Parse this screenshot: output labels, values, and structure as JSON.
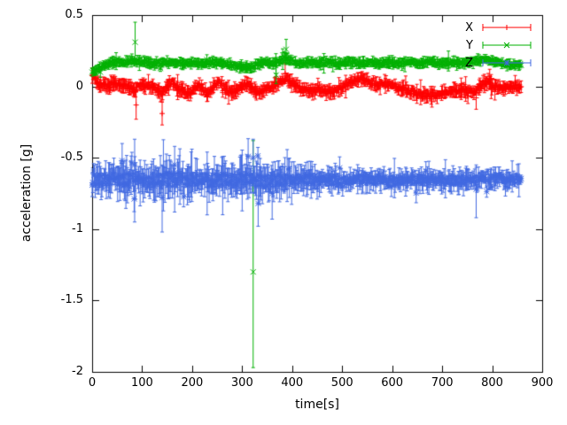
{
  "chart_data": {
    "type": "scatter",
    "style": "points-with-errorbars",
    "title": "",
    "xlabel": "time[s]",
    "ylabel": "acceleration [g]",
    "xlim": [
      0,
      900
    ],
    "ylim": [
      -2,
      0.5
    ],
    "grid": false,
    "legend_position": "top-right-inside",
    "axis_color": "#000000",
    "xticks": [
      {
        "v": 0,
        "label": "0"
      },
      {
        "v": 100,
        "label": "100"
      },
      {
        "v": 200,
        "label": "200"
      },
      {
        "v": 300,
        "label": "300"
      },
      {
        "v": 400,
        "label": "400"
      },
      {
        "v": 500,
        "label": "500"
      },
      {
        "v": 600,
        "label": "600"
      },
      {
        "v": 700,
        "label": "700"
      },
      {
        "v": 800,
        "label": "800"
      },
      {
        "v": 900,
        "label": "900"
      }
    ],
    "yticks": [
      {
        "v": 0.5,
        "label": "0.5"
      },
      {
        "v": 0,
        "label": "0"
      },
      {
        "v": -0.5,
        "label": "-0.5"
      },
      {
        "v": -1,
        "label": "-1"
      },
      {
        "v": -1.5,
        "label": "-1.5"
      },
      {
        "v": -2,
        "label": "-2"
      }
    ],
    "series": [
      {
        "name": "X",
        "color": "#ff0000",
        "marker": "plus",
        "seed": 7,
        "step": 1.5,
        "t_start": 0,
        "t_end": 858,
        "noise": 0.015,
        "err": 0.032,
        "drift": [
          [
            0,
            0.09
          ],
          [
            8,
            0.04
          ],
          [
            18,
            0.01
          ],
          [
            30,
            0.0
          ],
          [
            45,
            0.02
          ],
          [
            60,
            0.01
          ],
          [
            75,
            -0.01
          ],
          [
            85,
            -0.03
          ],
          [
            95,
            0.01
          ],
          [
            110,
            0.01
          ],
          [
            125,
            -0.01
          ],
          [
            138,
            -0.05
          ],
          [
            148,
            -0.01
          ],
          [
            160,
            0.02
          ],
          [
            172,
            -0.01
          ],
          [
            185,
            -0.03
          ],
          [
            196,
            -0.06
          ],
          [
            205,
            -0.02
          ],
          [
            213,
            0.02
          ],
          [
            222,
            -0.02
          ],
          [
            232,
            -0.06
          ],
          [
            242,
            -0.01
          ],
          [
            252,
            0.03
          ],
          [
            262,
            0.0
          ],
          [
            272,
            -0.03
          ],
          [
            283,
            -0.05
          ],
          [
            293,
            -0.01
          ],
          [
            305,
            0.02
          ],
          [
            318,
            -0.01
          ],
          [
            330,
            -0.04
          ],
          [
            342,
            -0.03
          ],
          [
            355,
            -0.01
          ],
          [
            368,
            0.0
          ],
          [
            380,
            0.04
          ],
          [
            390,
            0.06
          ],
          [
            398,
            0.02
          ],
          [
            410,
            0.0
          ],
          [
            425,
            -0.02
          ],
          [
            440,
            -0.03
          ],
          [
            455,
            -0.02
          ],
          [
            470,
            -0.04
          ],
          [
            485,
            -0.03
          ],
          [
            500,
            -0.01
          ],
          [
            512,
            0.02
          ],
          [
            525,
            0.04
          ],
          [
            538,
            0.06
          ],
          [
            550,
            0.04
          ],
          [
            562,
            0.01
          ],
          [
            575,
            0.01
          ],
          [
            590,
            0.02
          ],
          [
            605,
            0.0
          ],
          [
            620,
            -0.02
          ],
          [
            635,
            -0.04
          ],
          [
            650,
            -0.05
          ],
          [
            665,
            -0.06
          ],
          [
            680,
            -0.06
          ],
          [
            695,
            -0.05
          ],
          [
            710,
            -0.04
          ],
          [
            725,
            -0.03
          ],
          [
            740,
            -0.02
          ],
          [
            755,
            -0.04
          ],
          [
            768,
            -0.03
          ],
          [
            780,
            0.02
          ],
          [
            792,
            0.03
          ],
          [
            805,
            -0.01
          ],
          [
            820,
            -0.01
          ],
          [
            835,
            0.0
          ],
          [
            858,
            -0.01
          ]
        ],
        "outliers": [
          {
            "x": 88,
            "y": -0.13,
            "lo": -0.23,
            "hi": -0.04
          },
          {
            "x": 140,
            "y": -0.19,
            "lo": -0.27,
            "hi": -0.11
          },
          {
            "x": 386,
            "y": 0.09,
            "lo": 0.02,
            "hi": 0.16
          },
          {
            "x": 768,
            "y": -0.08,
            "lo": -0.16,
            "hi": 0.0
          },
          {
            "x": 795,
            "y": 0.05,
            "lo": -0.02,
            "hi": 0.12
          }
        ]
      },
      {
        "name": "Y",
        "color": "#00b000",
        "marker": "cross",
        "seed": 11,
        "step": 1.5,
        "t_start": 0,
        "t_end": 858,
        "noise": 0.011,
        "err": 0.024,
        "drift": [
          [
            0,
            0.1
          ],
          [
            12,
            0.12
          ],
          [
            25,
            0.15
          ],
          [
            40,
            0.17
          ],
          [
            60,
            0.17
          ],
          [
            80,
            0.18
          ],
          [
            100,
            0.17
          ],
          [
            120,
            0.16
          ],
          [
            140,
            0.17
          ],
          [
            160,
            0.17
          ],
          [
            180,
            0.16
          ],
          [
            200,
            0.17
          ],
          [
            220,
            0.16
          ],
          [
            240,
            0.17
          ],
          [
            260,
            0.16
          ],
          [
            280,
            0.15
          ],
          [
            298,
            0.14
          ],
          [
            315,
            0.13
          ],
          [
            330,
            0.15
          ],
          [
            345,
            0.17
          ],
          [
            360,
            0.16
          ],
          [
            375,
            0.18
          ],
          [
            388,
            0.2
          ],
          [
            398,
            0.17
          ],
          [
            415,
            0.16
          ],
          [
            435,
            0.17
          ],
          [
            455,
            0.16
          ],
          [
            475,
            0.17
          ],
          [
            495,
            0.16
          ],
          [
            515,
            0.17
          ],
          [
            535,
            0.16
          ],
          [
            555,
            0.17
          ],
          [
            575,
            0.16
          ],
          [
            595,
            0.17
          ],
          [
            615,
            0.16
          ],
          [
            635,
            0.17
          ],
          [
            655,
            0.16
          ],
          [
            675,
            0.17
          ],
          [
            695,
            0.16
          ],
          [
            715,
            0.17
          ],
          [
            735,
            0.16
          ],
          [
            755,
            0.17
          ],
          [
            775,
            0.18
          ],
          [
            790,
            0.19
          ],
          [
            805,
            0.17
          ],
          [
            822,
            0.16
          ],
          [
            840,
            0.15
          ],
          [
            858,
            0.15
          ]
        ],
        "outliers": [
          {
            "x": 86,
            "y": 0.31,
            "lo": 0.18,
            "hi": 0.45
          },
          {
            "x": 322,
            "y": -1.3,
            "lo": -1.97,
            "hi": -0.38
          },
          {
            "x": 368,
            "y": 0.08,
            "lo": 0.02,
            "hi": 0.14
          },
          {
            "x": 388,
            "y": 0.26,
            "lo": 0.18,
            "hi": 0.33
          }
        ]
      },
      {
        "name": "Z",
        "color": "#4169e1",
        "marker": "star",
        "seed": 23,
        "step": 1.5,
        "t_start": 0,
        "t_end": 858,
        "noise": 0.032,
        "err": 0.055,
        "noise_profile": [
          [
            0,
            1.2
          ],
          [
            80,
            1.5
          ],
          [
            140,
            1.6
          ],
          [
            200,
            1.3
          ],
          [
            260,
            1.4
          ],
          [
            320,
            1.5
          ],
          [
            380,
            1.3
          ],
          [
            440,
            1.1
          ],
          [
            500,
            1.0
          ],
          [
            560,
            0.9
          ],
          [
            620,
            0.85
          ],
          [
            680,
            0.8
          ],
          [
            740,
            0.9
          ],
          [
            800,
            0.75
          ],
          [
            858,
            0.7
          ]
        ],
        "drift": [
          [
            0,
            -0.66
          ],
          [
            60,
            -0.65
          ],
          [
            120,
            -0.66
          ],
          [
            180,
            -0.65
          ],
          [
            240,
            -0.66
          ],
          [
            300,
            -0.65
          ],
          [
            360,
            -0.66
          ],
          [
            420,
            -0.65
          ],
          [
            480,
            -0.66
          ],
          [
            540,
            -0.65
          ],
          [
            600,
            -0.66
          ],
          [
            660,
            -0.65
          ],
          [
            720,
            -0.66
          ],
          [
            780,
            -0.65
          ],
          [
            858,
            -0.65
          ]
        ],
        "outliers": [
          {
            "x": 60,
            "y": -0.52,
            "lo": -0.62,
            "hi": -0.4
          },
          {
            "x": 85,
            "y": -0.55,
            "lo": -0.95,
            "hi": -0.37
          },
          {
            "x": 140,
            "y": -0.78,
            "lo": -1.02,
            "hi": -0.55
          },
          {
            "x": 165,
            "y": -0.55,
            "lo": -0.88,
            "hi": -0.42
          },
          {
            "x": 230,
            "y": -0.62,
            "lo": -0.9,
            "hi": -0.46
          },
          {
            "x": 322,
            "y": -0.5,
            "lo": -0.66,
            "hi": -0.37
          },
          {
            "x": 332,
            "y": -0.82,
            "lo": -0.98,
            "hi": -0.62
          },
          {
            "x": 360,
            "y": -0.75,
            "lo": -0.93,
            "hi": -0.58
          },
          {
            "x": 768,
            "y": -0.72,
            "lo": -0.92,
            "hi": -0.55
          }
        ]
      }
    ]
  }
}
